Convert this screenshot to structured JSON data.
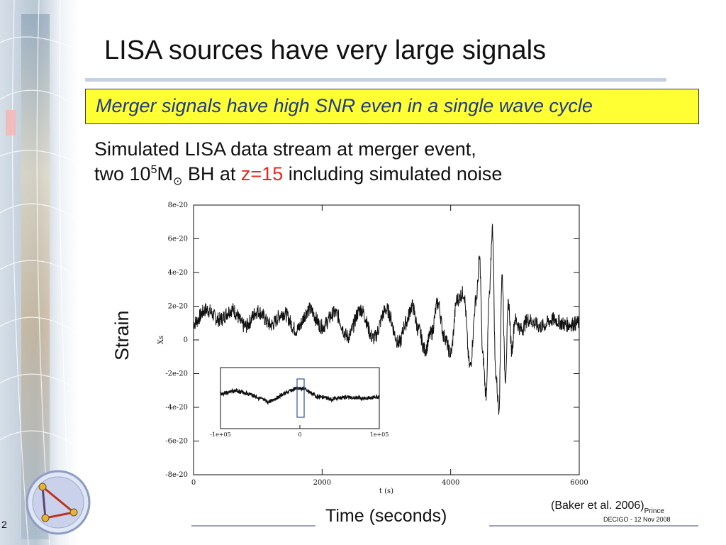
{
  "slide": {
    "title": "LISA sources have very large signals",
    "callout": "Merger signals have high SNR even in a single wave cycle",
    "desc_line1": "Simulated LISA data stream at  merger event,",
    "desc_line2_pre": "two 10",
    "desc_line2_exp": "5",
    "desc_line2_mass": "M",
    "desc_line2_sun": "⊙",
    "desc_line2_mid": " BH at ",
    "desc_line2_red": "z=15",
    "desc_line2_post": " including simulated noise",
    "outer_ylabel": "Strain",
    "outer_xlabel": "Time (seconds)",
    "citation": "(Baker et al. 2006)",
    "citation_tag": "Prince",
    "footer": "DECIGO - 12 Nov 2008",
    "page_number": "2",
    "accent_color": "#e8281e",
    "callout_color": "#ffff33",
    "callout_text_color": "#1e3a8a"
  },
  "chart_data": [
    {
      "type": "line",
      "xlabel": "t (s)",
      "ylabel": "Xs",
      "xlim": [
        0,
        6000
      ],
      "ylim": [
        -8e-20,
        8e-20
      ],
      "x_ticks": [
        "0",
        "2000",
        "4000",
        "6000"
      ],
      "y_ticks": [
        "8e-20",
        "6e-20",
        "4e-20",
        "2e-20",
        "0",
        "-2e-20",
        "-4e-20",
        "-6e-20",
        "-8e-20"
      ],
      "series": [
        {
          "x": [
            0,
            200,
            400,
            600,
            800,
            1000,
            1200,
            1400,
            1600,
            1800,
            2000,
            2200,
            2400,
            2600,
            2800,
            3000,
            3200,
            3300,
            3400,
            3500,
            3600,
            3700,
            3800,
            3900,
            4000,
            4100,
            4200,
            4300,
            4400,
            4450,
            4500,
            4550,
            4600,
            4650,
            4700,
            4750,
            4800,
            4850,
            4900,
            4950,
            5000,
            5100,
            5200,
            5400,
            5600,
            5800,
            6000
          ],
          "y": [
            1e-20,
            1.8e-20,
            1.2e-20,
            1.8e-20,
            8e-21,
            1.7e-20,
            9e-21,
            1.6e-20,
            6e-21,
            1.8e-20,
            8e-21,
            1.6e-20,
            2e-21,
            1.8e-20,
            1e-21,
            1.8e-20,
            -2e-21,
            1e-20,
            2e-20,
            6e-21,
            -6e-21,
            4e-21,
            2.2e-20,
            2e-21,
            -8e-21,
            2.4e-20,
            2.8e-20,
            -1.6e-20,
            2.5e-20,
            4.8e-20,
            -1e-20,
            -3.2e-20,
            2.5e-20,
            6.6e-20,
            -2e-20,
            -4e-20,
            3.8e-20,
            -2.2e-20,
            2.2e-20,
            -6e-21,
            1.2e-20,
            6e-21,
            1.2e-20,
            8e-21,
            1.2e-20,
            9e-21,
            1e-20
          ]
        }
      ]
    },
    {
      "type": "line",
      "xlim": [
        -100000,
        100000
      ],
      "x_ticks": [
        "-1e+05",
        "0",
        "1e+05"
      ],
      "series": [
        {
          "x": [
            -100000,
            -80000,
            -60000,
            -40000,
            -20000,
            -5000,
            5000,
            20000,
            40000,
            60000,
            80000,
            100000
          ],
          "y": [
            0.2,
            0.35,
            0.15,
            -0.2,
            0.2,
            0.45,
            0.45,
            0.1,
            -0.05,
            0.05,
            0.0,
            0.05
          ]
        }
      ]
    }
  ]
}
